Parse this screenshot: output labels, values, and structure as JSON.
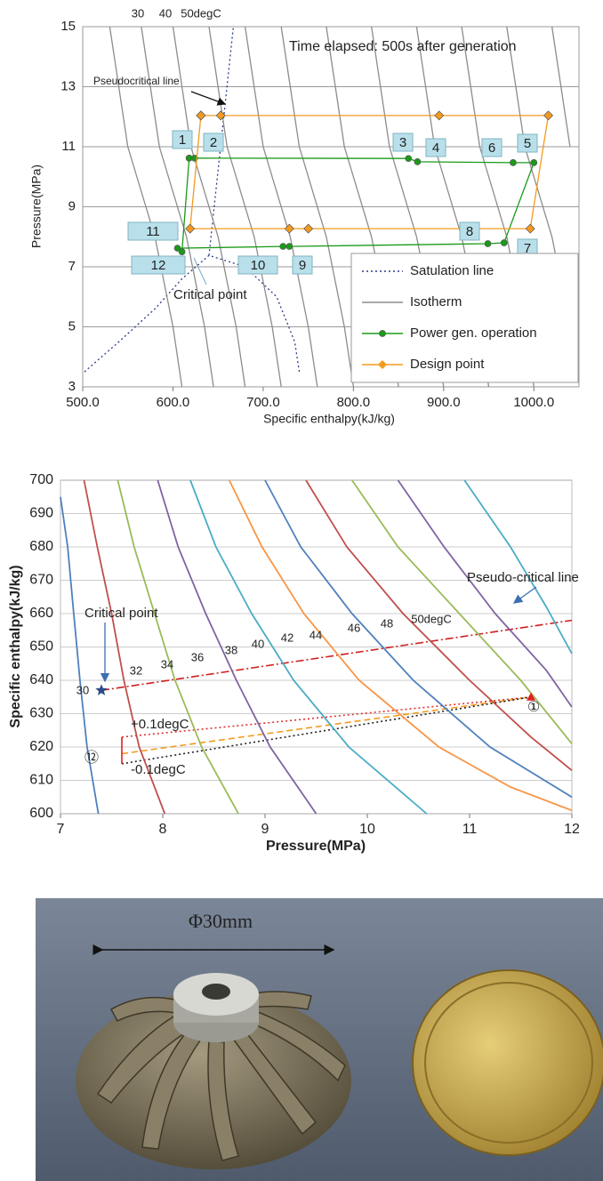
{
  "chart_data": [
    {
      "type": "line",
      "xlabel": "Specific enthalpy(kJ/kg)",
      "ylabel": "Pressure(MPa)",
      "xlim": [
        500,
        1050
      ],
      "xticks": [
        {
          "value": 500,
          "label": "500.0"
        },
        {
          "value": 600,
          "label": "600.0"
        },
        {
          "value": 700,
          "label": "700.0"
        },
        {
          "value": 800,
          "label": "800.0"
        },
        {
          "value": 900,
          "label": "900.0"
        },
        {
          "value": 1000,
          "label": "1000.0"
        }
      ],
      "ylim": [
        3,
        15
      ],
      "yticks": [
        3,
        5,
        7,
        9,
        11,
        13,
        15
      ],
      "grid": true,
      "legend": "lower right",
      "series": [
        {
          "name": "Satulation line",
          "color": "#2b3a8c",
          "style": "dotted",
          "x": [
            502,
            540,
            580,
            610,
            640,
            680,
            715,
            735,
            740,
            null,
            640,
            667
          ],
          "values": [
            3.5,
            4.5,
            5.6,
            6.6,
            7.38,
            7.0,
            6.0,
            4.5,
            3.5,
            null,
            7.38,
            15
          ]
        },
        {
          "name": "Isotherm",
          "color": "#8c8c8c",
          "style": "solid",
          "x": [
            530,
            550,
            580,
            600,
            610,
            null,
            565,
            585,
            615,
            635,
            645,
            null,
            600,
            620,
            650,
            670,
            680,
            null,
            640,
            660,
            690,
            710,
            720,
            null,
            680,
            700,
            730,
            750,
            760,
            null,
            720,
            740,
            770,
            790,
            800,
            null,
            770,
            790,
            820,
            840,
            850,
            null,
            820,
            840,
            870,
            890,
            900,
            null,
            870,
            890,
            920,
            940,
            950,
            null,
            920,
            940,
            970,
            990,
            1000,
            null,
            970,
            990,
            1020,
            1040,
            null,
            1020,
            1040
          ],
          "values": [
            15,
            11,
            8,
            5,
            3,
            null,
            15,
            11,
            8,
            5,
            3,
            null,
            15,
            11,
            8,
            5,
            3,
            null,
            15,
            11,
            8,
            5,
            3,
            null,
            15,
            11,
            8,
            5,
            3,
            null,
            15,
            11,
            8,
            5,
            3,
            null,
            15,
            11,
            8,
            5,
            3,
            null,
            15,
            11,
            8,
            5,
            3,
            null,
            15,
            11,
            8,
            5,
            3,
            null,
            15,
            11,
            8,
            5,
            3,
            null,
            15,
            11,
            8,
            5,
            null,
            15,
            11
          ]
        },
        {
          "name": "Power gen. operation",
          "color": "#1a9a1a",
          "style": "solid",
          "marker": "circle",
          "x": [
            618,
            624,
            861,
            871,
            977,
            1000,
            967,
            949,
            729,
            722,
            605,
            610,
            618
          ],
          "values": [
            10.62,
            10.62,
            10.61,
            10.5,
            10.47,
            10.47,
            7.8,
            7.77,
            7.68,
            7.68,
            7.62,
            7.5,
            10.62
          ]
        },
        {
          "name": "Design point",
          "color": "#f39a1e",
          "style": "solid",
          "marker": "diamond",
          "x": [
            631,
            653,
            895,
            1016,
            996,
            750,
            729,
            619,
            631
          ],
          "values": [
            12.04,
            12.04,
            12.04,
            12.04,
            8.27,
            8.27,
            8.27,
            8.27,
            12.04
          ]
        }
      ],
      "annotations": [
        "Time elapsed: 500s after generation",
        "30",
        "40",
        "50degC",
        "Pseudocritical line",
        "Critical point"
      ],
      "point_labels": [
        "1",
        "2",
        "3",
        "4",
        "5",
        "6",
        "7",
        "8",
        "9",
        "10",
        "11",
        "12"
      ]
    },
    {
      "type": "line",
      "xlabel": "Pressure(MPa)",
      "ylabel": "Specific enthalpy(kJ/kg)",
      "xlim": [
        7,
        12
      ],
      "xticks": [
        7,
        8,
        9,
        10,
        11,
        12
      ],
      "ylim": [
        600,
        700
      ],
      "yticks": [
        600,
        610,
        620,
        630,
        640,
        650,
        660,
        670,
        680,
        690,
        700
      ],
      "grid": true,
      "series": [
        {
          "name": "30",
          "color": "#4f81bd",
          "x": [
            7.0,
            7.07,
            7.13,
            7.19,
            7.26,
            7.37
          ],
          "values": [
            695,
            680,
            660,
            640,
            620,
            600
          ]
        },
        {
          "name": "32",
          "color": "#c0504d",
          "x": [
            7.23,
            7.36,
            7.5,
            7.62,
            7.77,
            8.02
          ],
          "values": [
            700,
            680,
            660,
            640,
            620,
            600
          ]
        },
        {
          "name": "34",
          "color": "#9bbb59",
          "x": [
            7.56,
            7.72,
            7.92,
            8.12,
            8.38,
            8.74
          ],
          "values": [
            700,
            680,
            660,
            640,
            620,
            600
          ]
        },
        {
          "name": "36",
          "color": "#8064a2",
          "x": [
            7.95,
            8.15,
            8.42,
            8.72,
            9.05,
            9.5
          ],
          "values": [
            700,
            680,
            660,
            640,
            620,
            600
          ]
        },
        {
          "name": "38",
          "color": "#4bacc6",
          "x": [
            8.27,
            8.52,
            8.87,
            9.28,
            9.82,
            10.58
          ],
          "values": [
            700,
            680,
            660,
            640,
            620,
            600
          ]
        },
        {
          "name": "40",
          "color": "#f79646",
          "x": [
            8.65,
            8.97,
            9.38,
            9.92,
            10.7,
            11.4,
            12.0
          ],
          "values": [
            700,
            680,
            660,
            640,
            620,
            608,
            601
          ]
        },
        {
          "name": "42",
          "color": "#4f81bd",
          "x": [
            9.0,
            9.35,
            9.85,
            10.45,
            11.2,
            12.0
          ],
          "values": [
            700,
            680,
            660,
            640,
            620,
            605
          ]
        },
        {
          "name": "44",
          "color": "#c0504d",
          "x": [
            9.4,
            9.8,
            10.35,
            11.0,
            11.6,
            12.0
          ],
          "values": [
            700,
            680,
            660,
            640,
            623,
            613
          ]
        },
        {
          "name": "46",
          "color": "#9bbb59",
          "x": [
            9.85,
            10.3,
            10.9,
            11.5,
            12.0
          ],
          "values": [
            700,
            680,
            660,
            640,
            621
          ]
        },
        {
          "name": "48",
          "color": "#8064a2",
          "x": [
            10.3,
            10.75,
            11.25,
            11.75,
            12.0
          ],
          "values": [
            700,
            680,
            660,
            643,
            632
          ]
        },
        {
          "name": "50degC",
          "color": "#4bacc6",
          "x": [
            10.95,
            11.4,
            11.75,
            12.0
          ],
          "values": [
            700,
            680,
            662,
            648
          ]
        }
      ],
      "lines": [
        {
          "color": "#d02020",
          "style": "dashdot",
          "x": [
            7.4,
            12
          ],
          "values": [
            637,
            658
          ]
        },
        {
          "color": "#e03030",
          "style": "dotted",
          "x": [
            7.6,
            11.6
          ],
          "values": [
            623,
            635
          ]
        },
        {
          "color": "#f39a1e",
          "style": "dashed",
          "x": [
            7.6,
            11.6
          ],
          "values": [
            618,
            635
          ]
        },
        {
          "color": "#222222",
          "style": "dotted",
          "x": [
            7.6,
            11.6
          ],
          "values": [
            615,
            635
          ]
        },
        {
          "color": "#e02020",
          "style": "solid",
          "x": [
            7.6,
            7.6
          ],
          "values": [
            615,
            623
          ]
        }
      ],
      "points": [
        {
          "marker": "star",
          "color": "#2b4a8a",
          "x": 7.4,
          "value": 637
        },
        {
          "marker": "triangle",
          "color": "#e02020",
          "x": 11.6,
          "value": 635
        }
      ],
      "annotations": [
        "Critical point",
        "Pseudo-critical line",
        "①",
        "⑫",
        "+0.1degC",
        "-0.1degC"
      ]
    }
  ],
  "photo": {
    "caption": "Φ30mm"
  }
}
